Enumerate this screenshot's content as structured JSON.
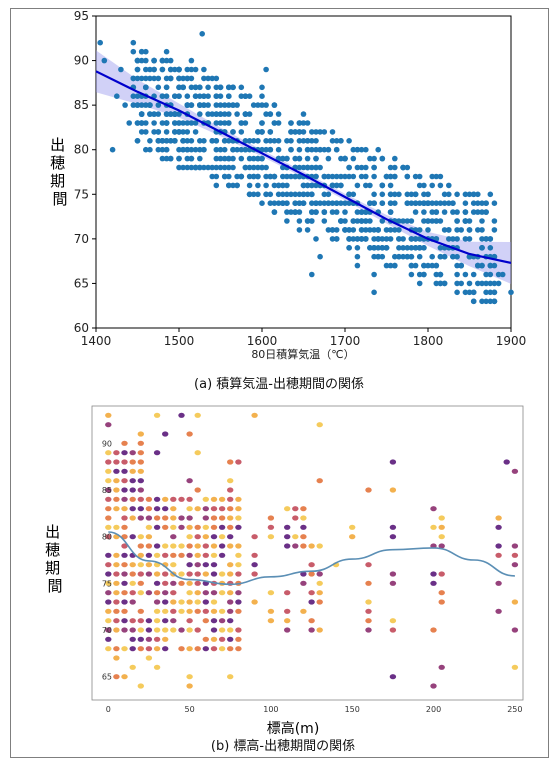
{
  "chart_data": [
    {
      "id": "a",
      "type": "scatter",
      "caption": "(a) 積算気温-出穂期間の関係",
      "xlabel": "80日積算気温（℃）",
      "ylabel": "出穂期間",
      "xlim": [
        1400,
        1900
      ],
      "ylim": [
        60,
        95
      ],
      "xticks": [
        "1400",
        "1500",
        "1600",
        "1700",
        "1800",
        "1900"
      ],
      "yticks": [
        "60",
        "65",
        "70",
        "75",
        "80",
        "85",
        "90",
        "95"
      ],
      "ytick_values": [
        60,
        65,
        70,
        75,
        80,
        85,
        90,
        95
      ],
      "point_color": "#1f77b4",
      "fit_color": "#0000cc",
      "band_color": "#9999ee",
      "fit_line": {
        "x": [
          1400,
          1450,
          1500,
          1550,
          1600,
          1650,
          1700,
          1750,
          1800,
          1850,
          1900
        ],
        "y": [
          88.8,
          86.5,
          84.4,
          82.0,
          79.6,
          77.2,
          74.7,
          72.2,
          70.0,
          68.3,
          67.3
        ]
      },
      "points": [
        [
          1405,
          92
        ],
        [
          1410,
          90
        ],
        [
          1420,
          80
        ],
        [
          1425,
          86
        ],
        [
          1430,
          89
        ],
        [
          1435,
          85
        ],
        [
          1440,
          83
        ],
        [
          1445,
          88
        ],
        [
          1450,
          89
        ],
        [
          1455,
          91
        ],
        [
          1460,
          87
        ],
        [
          1465,
          85
        ],
        [
          1470,
          84
        ],
        [
          1475,
          82
        ],
        [
          1480,
          86
        ],
        [
          1485,
          80
        ],
        [
          1490,
          88
        ],
        [
          1495,
          84
        ],
        [
          1500,
          83
        ],
        [
          1500,
          86
        ],
        [
          1505,
          81
        ],
        [
          1505,
          87
        ],
        [
          1510,
          85
        ],
        [
          1510,
          79
        ],
        [
          1515,
          83
        ],
        [
          1515,
          88
        ],
        [
          1520,
          82
        ],
        [
          1520,
          86
        ],
        [
          1525,
          84
        ],
        [
          1525,
          80
        ],
        [
          1528,
          93
        ],
        [
          1530,
          78
        ],
        [
          1530,
          85
        ],
        [
          1535,
          83
        ],
        [
          1535,
          87
        ],
        [
          1540,
          81
        ],
        [
          1540,
          84
        ],
        [
          1545,
          86
        ],
        [
          1545,
          79
        ],
        [
          1550,
          82
        ],
        [
          1550,
          84
        ],
        [
          1555,
          77
        ],
        [
          1555,
          80
        ],
        [
          1560,
          83
        ],
        [
          1560,
          85
        ],
        [
          1565,
          79
        ],
        [
          1565,
          81
        ],
        [
          1570,
          84
        ],
        [
          1570,
          76
        ],
        [
          1575,
          82
        ],
        [
          1575,
          80
        ],
        [
          1580,
          78
        ],
        [
          1580,
          83
        ],
        [
          1585,
          81
        ],
        [
          1585,
          77
        ],
        [
          1590,
          85
        ],
        [
          1590,
          79
        ],
        [
          1595,
          80
        ],
        [
          1595,
          76
        ],
        [
          1600,
          82
        ],
        [
          1600,
          78
        ],
        [
          1605,
          89
        ],
        [
          1605,
          75
        ],
        [
          1610,
          80
        ],
        [
          1610,
          84
        ],
        [
          1615,
          77
        ],
        [
          1615,
          73
        ],
        [
          1620,
          81
        ],
        [
          1620,
          79
        ],
        [
          1625,
          76
        ],
        [
          1625,
          74
        ],
        [
          1630,
          78
        ],
        [
          1630,
          72
        ],
        [
          1635,
          80
        ],
        [
          1635,
          75
        ],
        [
          1640,
          77
        ],
        [
          1640,
          73
        ],
        [
          1645,
          79
        ],
        [
          1645,
          71
        ],
        [
          1650,
          76
        ],
        [
          1650,
          74
        ],
        [
          1655,
          78
        ],
        [
          1655,
          72
        ],
        [
          1660,
          75
        ],
        [
          1660,
          77
        ],
        [
          1665,
          73
        ],
        [
          1665,
          70
        ],
        [
          1670,
          76
        ],
        [
          1670,
          68
        ],
        [
          1675,
          74
        ],
        [
          1675,
          72
        ],
        [
          1680,
          71
        ],
        [
          1680,
          75
        ],
        [
          1685,
          73
        ],
        [
          1685,
          77
        ],
        [
          1690,
          70
        ],
        [
          1690,
          74
        ],
        [
          1695,
          72
        ],
        [
          1695,
          76
        ],
        [
          1700,
          71
        ],
        [
          1700,
          73
        ],
        [
          1705,
          69
        ],
        [
          1705,
          75
        ],
        [
          1710,
          72
        ],
        [
          1710,
          70
        ],
        [
          1715,
          74
        ],
        [
          1715,
          68
        ],
        [
          1720,
          71
        ],
        [
          1720,
          73
        ],
        [
          1725,
          70
        ],
        [
          1725,
          72
        ],
        [
          1730,
          69
        ],
        [
          1730,
          74
        ],
        [
          1735,
          71
        ],
        [
          1735,
          66
        ],
        [
          1740,
          73
        ],
        [
          1740,
          70
        ],
        [
          1745,
          72
        ],
        [
          1745,
          68
        ],
        [
          1750,
          71
        ],
        [
          1750,
          69
        ],
        [
          1755,
          70
        ],
        [
          1755,
          73
        ],
        [
          1760,
          72
        ],
        [
          1760,
          67
        ],
        [
          1765,
          71
        ],
        [
          1765,
          69
        ],
        [
          1770,
          70
        ],
        [
          1775,
          72
        ],
        [
          1780,
          68
        ],
        [
          1780,
          71
        ],
        [
          1785,
          70
        ],
        [
          1790,
          69
        ],
        [
          1790,
          65
        ],
        [
          1795,
          76
        ],
        [
          1800,
          71
        ],
        [
          1805,
          72
        ],
        [
          1810,
          70
        ],
        [
          1815,
          69
        ],
        [
          1820,
          68
        ],
        [
          1825,
          70
        ],
        [
          1830,
          69
        ],
        [
          1840,
          67
        ],
        [
          1850,
          68
        ],
        [
          1860,
          67
        ],
        [
          1890,
          66
        ],
        [
          1900,
          64
        ],
        [
          1735,
          64
        ],
        [
          1660,
          66
        ],
        [
          1715,
          67
        ],
        [
          1560,
          86
        ],
        [
          1580,
          86
        ],
        [
          1540,
          88
        ],
        [
          1600,
          87
        ],
        [
          1480,
          81
        ],
        [
          1620,
          83
        ],
        [
          1640,
          82
        ],
        [
          1660,
          80
        ],
        [
          1700,
          79
        ],
        [
          1720,
          78
        ]
      ]
    },
    {
      "id": "b",
      "type": "scatter",
      "caption": "(b) 標高-出穂期間の関係",
      "xlabel": "標高(m)",
      "ylabel": "出穂期間",
      "xlim": [
        -10,
        255
      ],
      "ylim": [
        62.5,
        94
      ],
      "xticks": [
        "0",
        "50",
        "100",
        "150",
        "200",
        "250"
      ],
      "xtick_values": [
        0,
        50,
        100,
        150,
        200,
        250
      ],
      "yticks": [
        "65",
        "70",
        "75",
        "80",
        "85",
        "90"
      ],
      "ytick_values": [
        65,
        70,
        75,
        80,
        85,
        90
      ],
      "colors": [
        "#5a1a7a",
        "#8b2d6e",
        "#c24a5a",
        "#e3733c",
        "#f2a93b",
        "#f4c54a"
      ],
      "fit_color": "#5b8fb5",
      "fit_line": {
        "x": [
          0,
          25,
          50,
          75,
          100,
          125,
          150,
          175,
          200,
          225,
          250
        ],
        "y": [
          80.5,
          77.4,
          75.4,
          74.9,
          75.7,
          76.3,
          77.6,
          78.6,
          78.8,
          77.5,
          75.8
        ]
      }
    }
  ]
}
